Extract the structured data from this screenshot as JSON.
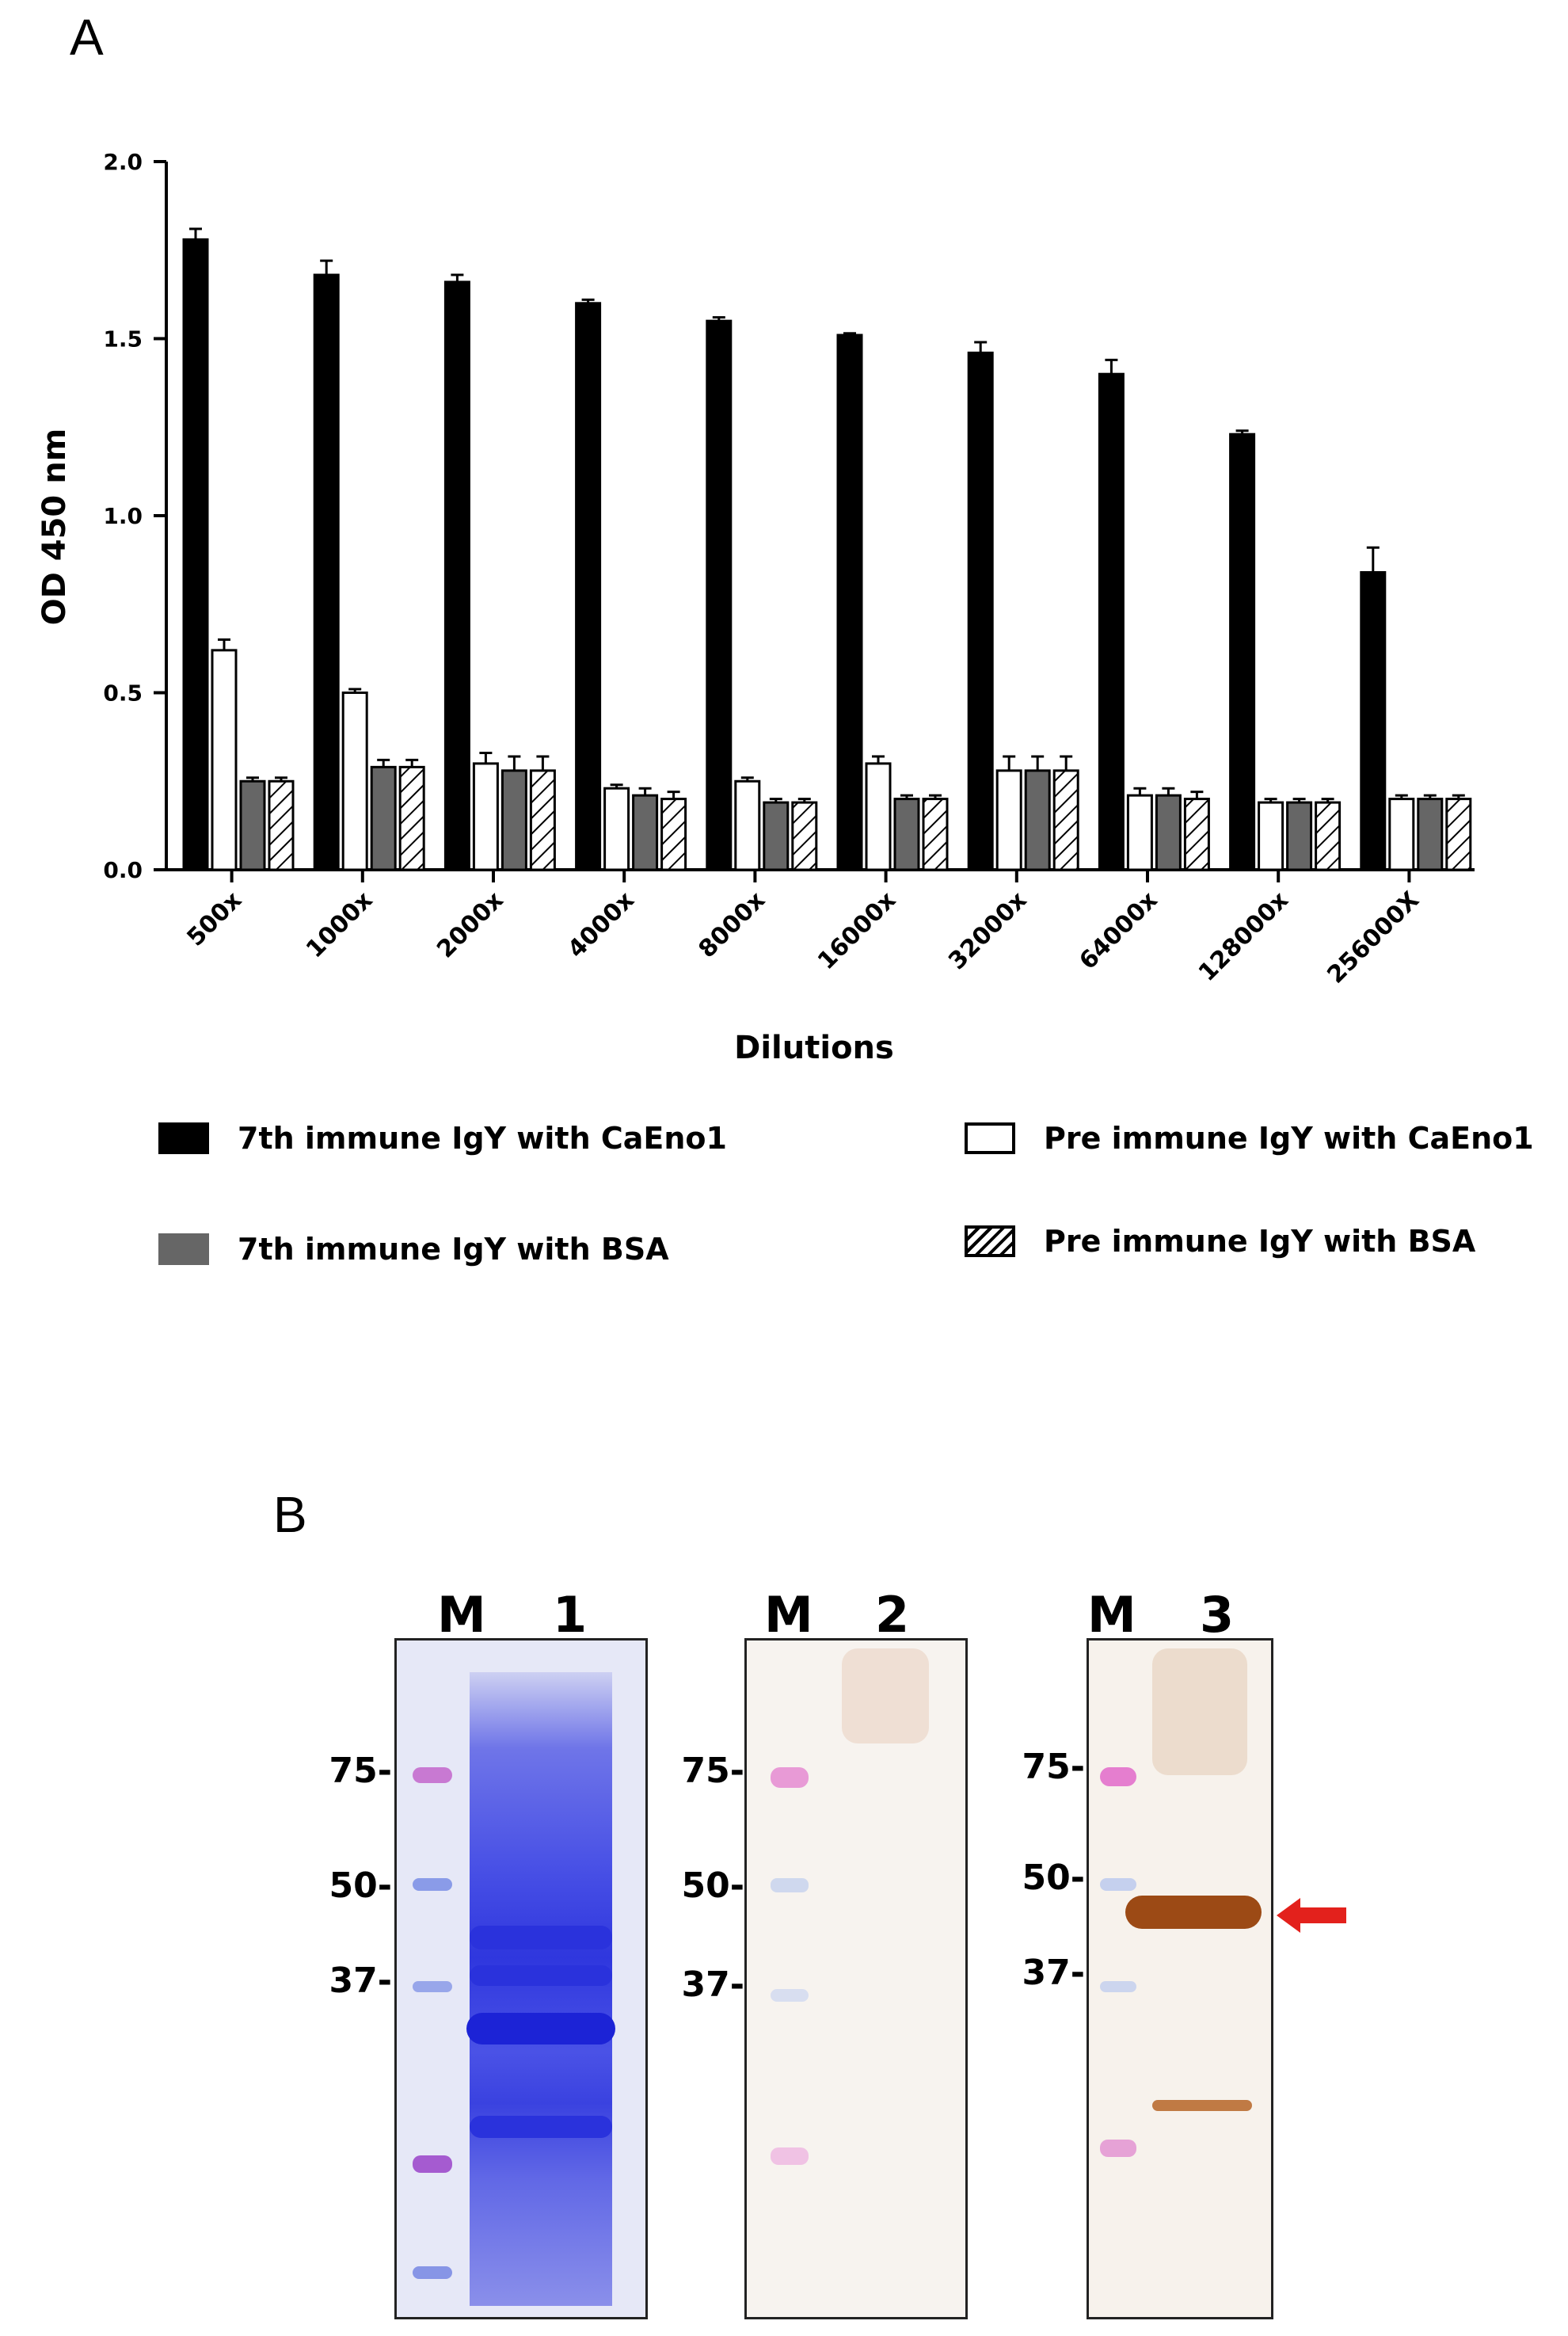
{
  "panels": {
    "a": "A",
    "b": "B"
  },
  "chart_data": {
    "type": "bar",
    "xlabel": "Dilutions",
    "ylabel": "OD 450 nm",
    "ylim": [
      0,
      2.0
    ],
    "yticks": [
      "0.0",
      "0.5",
      "1.0",
      "1.5",
      "2.0"
    ],
    "categories": [
      "500x",
      "1000x",
      "2000x",
      "4000x",
      "8000x",
      "16000x",
      "32000x",
      "64000x",
      "128000x",
      "256000X"
    ],
    "series": [
      {
        "name": "7th immune IgY with CaEno1",
        "fill": "#000000",
        "values": [
          1.78,
          1.68,
          1.66,
          1.6,
          1.55,
          1.51,
          1.46,
          1.4,
          1.23,
          0.84
        ],
        "errors": [
          0.03,
          0.04,
          0.02,
          0.01,
          0.01,
          0.005,
          0.03,
          0.04,
          0.01,
          0.07
        ]
      },
      {
        "name": "Pre immune IgY with CaEno1",
        "fill": "#ffffff",
        "values": [
          0.62,
          0.5,
          0.3,
          0.23,
          0.25,
          0.3,
          0.28,
          0.21,
          0.19,
          0.2
        ],
        "errors": [
          0.03,
          0.01,
          0.03,
          0.01,
          0.01,
          0.02,
          0.04,
          0.02,
          0.01,
          0.01
        ]
      },
      {
        "name": "7th immune IgY with BSA",
        "fill": "#666666",
        "values": [
          0.25,
          0.29,
          0.28,
          0.21,
          0.19,
          0.2,
          0.28,
          0.21,
          0.19,
          0.2
        ],
        "errors": [
          0.01,
          0.02,
          0.04,
          0.02,
          0.01,
          0.01,
          0.04,
          0.02,
          0.01,
          0.01
        ]
      },
      {
        "name": "Pre immune IgY with BSA",
        "fill": "hatch",
        "values": [
          0.25,
          0.29,
          0.28,
          0.2,
          0.19,
          0.2,
          0.28,
          0.2,
          0.19,
          0.2
        ],
        "errors": [
          0.01,
          0.02,
          0.04,
          0.02,
          0.01,
          0.01,
          0.04,
          0.02,
          0.01,
          0.01
        ]
      }
    ]
  },
  "legend": {
    "s1": "7th immune IgY with CaEno1",
    "s2": "Pre immune IgY with CaEno1",
    "s3": "7th immune IgY with BSA",
    "s4": "Pre immune IgY with BSA"
  },
  "gels": [
    {
      "lanes": [
        "M",
        "1"
      ],
      "markers": [
        "75-",
        "50-",
        "37-"
      ]
    },
    {
      "lanes": [
        "M",
        "2"
      ],
      "markers": [
        "75-",
        "50-",
        "37-"
      ]
    },
    {
      "lanes": [
        "M",
        "3"
      ],
      "markers": [
        "75-",
        "50-",
        "37-"
      ]
    }
  ],
  "colors": {
    "arrow": "#e3211c",
    "coomassie": "#3b43e0",
    "western": "#a4501a"
  }
}
